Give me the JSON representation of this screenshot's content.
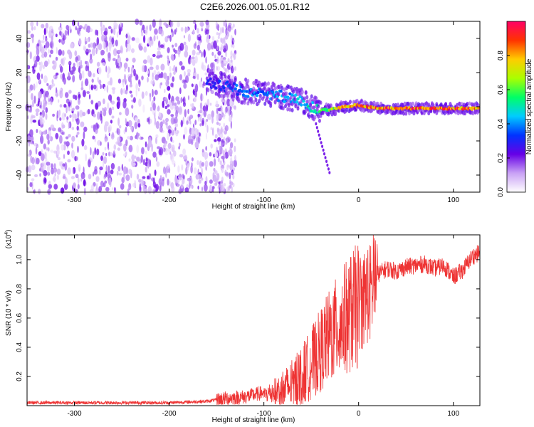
{
  "title": "C2E6.2026.001.05.01.R12",
  "colors": {
    "signal_line": "#ee3333",
    "axis": "#000000",
    "background": "#ffffff"
  },
  "chart_data": [
    {
      "type": "heatmap",
      "xlabel": "Height of straight line (km)",
      "ylabel": "Frequency (Hz)",
      "xlim": [
        -350,
        128
      ],
      "ylim": [
        -50,
        50
      ],
      "x_ticks": [
        -300,
        -200,
        -100,
        0,
        100
      ],
      "y_ticks": [
        -40,
        -20,
        0,
        20,
        40
      ],
      "colorbar": {
        "label": "Normalized spectral amplitude",
        "range": [
          0,
          1
        ],
        "ticks": [
          0.0,
          0.2,
          0.4,
          0.6,
          0.8
        ],
        "tick_labels": [
          "0.0",
          "0.2",
          "0.4",
          "0.6",
          "0.8"
        ],
        "colormap": [
          "#ffffff",
          "#c9a2f5",
          "#6600e6",
          "#0033ff",
          "#00ccff",
          "#00ff66",
          "#aaff00",
          "#ffcc00",
          "#ff3300",
          "#ff0066"
        ]
      },
      "noise_region": {
        "x_range": [
          -350,
          -140
        ],
        "freq_range": [
          -50,
          50
        ],
        "mean_amplitude": 0.12
      },
      "signal_track": [
        {
          "x": -160,
          "freq": 15,
          "amplitude": 0.3
        },
        {
          "x": -140,
          "freq": 12,
          "amplitude": 0.35
        },
        {
          "x": -120,
          "freq": 9,
          "amplitude": 0.4
        },
        {
          "x": -100,
          "freq": 8,
          "amplitude": 0.42
        },
        {
          "x": -80,
          "freq": 6,
          "amplitude": 0.45
        },
        {
          "x": -60,
          "freq": 3,
          "amplitude": 0.5
        },
        {
          "x": -45,
          "freq": -1,
          "amplitude": 0.55
        },
        {
          "x": -30,
          "freq": -2,
          "amplitude": 0.7
        },
        {
          "x": -15,
          "freq": 0,
          "amplitude": 0.85
        },
        {
          "x": 0,
          "freq": 1,
          "amplitude": 0.9
        },
        {
          "x": 20,
          "freq": -1,
          "amplitude": 0.95
        },
        {
          "x": 50,
          "freq": -1,
          "amplitude": 0.95
        },
        {
          "x": 80,
          "freq": -1,
          "amplitude": 0.95
        },
        {
          "x": 110,
          "freq": -1,
          "amplitude": 0.95
        },
        {
          "x": 128,
          "freq": -1,
          "amplitude": 0.9
        }
      ]
    },
    {
      "type": "line",
      "xlabel": "Height of straight line (km)",
      "ylabel": "SNR (10 * v/v)",
      "y_multiplier": "(x10",
      "y_multiplier_exp": "4",
      "y_multiplier_close": ")",
      "xlim": [
        -350,
        128
      ],
      "ylim": [
        0,
        1.17
      ],
      "x_ticks": [
        -300,
        -200,
        -100,
        0,
        100
      ],
      "y_ticks": [
        0.2,
        0.4,
        0.6,
        0.8,
        1.0
      ],
      "y_tick_labels": [
        "0.2",
        "0.4",
        "0.6",
        "0.8",
        "1.0"
      ],
      "series": [
        {
          "x": [
            -350,
            -300,
            -250,
            -200,
            -160,
            -150,
            -140,
            -120,
            -100,
            -90,
            -80,
            -70,
            -60,
            -50,
            -40,
            -30,
            -20,
            -10,
            0,
            10,
            20,
            30,
            40,
            50,
            60,
            70,
            80,
            90,
            100,
            110,
            120,
            128
          ],
          "y": [
            0.02,
            0.02,
            0.02,
            0.02,
            0.03,
            0.04,
            0.05,
            0.06,
            0.09,
            0.12,
            0.15,
            0.2,
            0.27,
            0.36,
            0.47,
            0.58,
            0.66,
            0.75,
            0.82,
            0.87,
            0.9,
            0.94,
            0.92,
            0.95,
            0.96,
            0.97,
            0.94,
            0.96,
            0.88,
            0.93,
            1.02,
            1.05
          ]
        }
      ]
    }
  ]
}
